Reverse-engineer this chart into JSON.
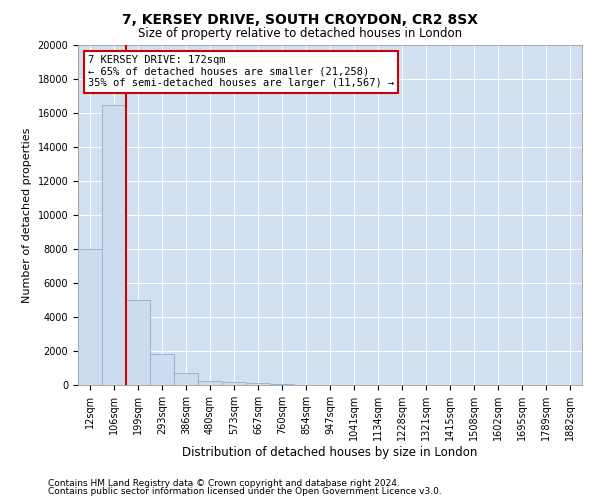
{
  "title1": "7, KERSEY DRIVE, SOUTH CROYDON, CR2 8SX",
  "title2": "Size of property relative to detached houses in London",
  "xlabel": "Distribution of detached houses by size in London",
  "ylabel": "Number of detached properties",
  "footnote1": "Contains HM Land Registry data © Crown copyright and database right 2024.",
  "footnote2": "Contains public sector information licensed under the Open Government Licence v3.0.",
  "annotation_title": "7 KERSEY DRIVE: 172sqm",
  "annotation_line1": "← 65% of detached houses are smaller (21,258)",
  "annotation_line2": "35% of semi-detached houses are larger (11,567) →",
  "bar_labels": [
    "12sqm",
    "106sqm",
    "199sqm",
    "293sqm",
    "386sqm",
    "480sqm",
    "573sqm",
    "667sqm",
    "760sqm",
    "854sqm",
    "947sqm",
    "1041sqm",
    "1134sqm",
    "1228sqm",
    "1321sqm",
    "1415sqm",
    "1508sqm",
    "1602sqm",
    "1695sqm",
    "1789sqm",
    "1882sqm"
  ],
  "bar_values": [
    8000,
    16500,
    5000,
    1800,
    700,
    250,
    200,
    100,
    50,
    0,
    0,
    0,
    0,
    0,
    0,
    0,
    0,
    0,
    0,
    0,
    0
  ],
  "bar_color": "#ccdcee",
  "bar_edge_color": "#8ab0cc",
  "vline_color": "#cc0000",
  "ylim": [
    0,
    20000
  ],
  "yticks": [
    0,
    2000,
    4000,
    6000,
    8000,
    10000,
    12000,
    14000,
    16000,
    18000,
    20000
  ],
  "background_color": "#ffffff",
  "plot_bg_color": "#d0e0f0",
  "grid_color": "#ffffff",
  "annotation_box_color": "#ffffff",
  "annotation_box_edge": "#cc0000",
  "title1_fontsize": 10,
  "title2_fontsize": 8.5,
  "ylabel_fontsize": 8,
  "xlabel_fontsize": 8.5,
  "tick_fontsize": 7,
  "annotation_fontsize": 7.5,
  "footnote_fontsize": 6.5
}
